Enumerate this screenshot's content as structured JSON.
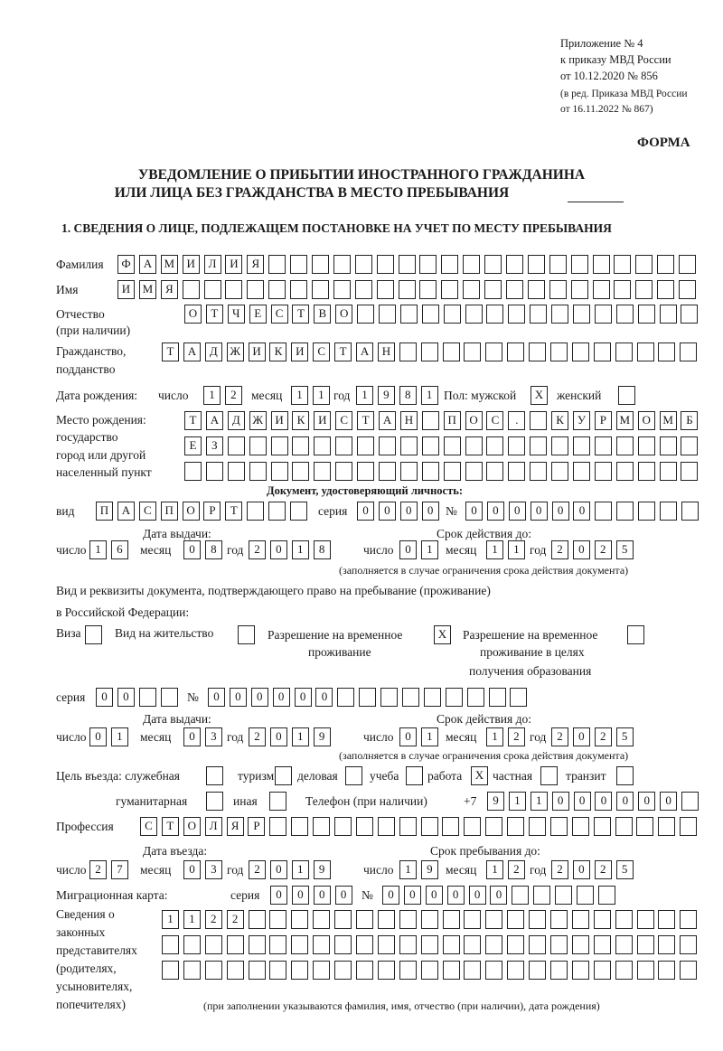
{
  "header": {
    "appendix": "Приложение № 4",
    "order": "к приказу МВД России",
    "order_date": "от 10.12.2020 № 856",
    "edition1": "(в ред. Приказа МВД России",
    "edition2": "от 16.11.2022 № 867)",
    "form": "ФОРМА",
    "title1": "УВЕДОМЛЕНИЕ О ПРИБЫТИИ ИНОСТРАННОГО ГРАЖДАНИНА",
    "title2": "ИЛИ ЛИЦА БЕЗ ГРАЖДАНСТВА В МЕСТО ПРЕБЫВАНИЯ",
    "section1": "1. СВЕДЕНИЯ О ЛИЦЕ, ПОДЛЕЖАЩЕМ ПОСТАНОВКЕ НА УЧЕТ ПО МЕСТУ ПРЕБЫВАНИЯ"
  },
  "person": {
    "surname_label": "Фамилия",
    "surname": [
      "Ф",
      "А",
      "М",
      "И",
      "Л",
      "И",
      "Я",
      "",
      "",
      "",
      "",
      "",
      "",
      "",
      "",
      "",
      "",
      "",
      "",
      "",
      "",
      "",
      "",
      "",
      "",
      "",
      ""
    ],
    "name_label": "Имя",
    "name": [
      "И",
      "М",
      "Я",
      "",
      "",
      "",
      "",
      "",
      "",
      "",
      "",
      "",
      "",
      "",
      "",
      "",
      "",
      "",
      "",
      "",
      "",
      "",
      "",
      "",
      "",
      "",
      ""
    ],
    "patronymic_label1": "Отчество",
    "patronymic_label2": "(при наличии)",
    "patronymic": [
      "О",
      "Т",
      "Ч",
      "Е",
      "С",
      "Т",
      "В",
      "О",
      "",
      "",
      "",
      "",
      "",
      "",
      "",
      "",
      "",
      "",
      "",
      "",
      "",
      "",
      "",
      ""
    ],
    "citizenship_label1": "Гражданство,",
    "citizenship_label2": "подданство",
    "citizenship": [
      "Т",
      "А",
      "Д",
      "Ж",
      "И",
      "К",
      "И",
      "С",
      "Т",
      "А",
      "Н",
      "",
      "",
      "",
      "",
      "",
      "",
      "",
      "",
      "",
      "",
      "",
      "",
      "",
      ""
    ],
    "birth_label": "Дата рождения:",
    "day_label": "число",
    "birth_day": [
      "1",
      "2"
    ],
    "month_label": "месяц",
    "birth_month": [
      "1",
      "1"
    ],
    "year_label": "год",
    "birth_year": [
      "1",
      "9",
      "8",
      "1"
    ],
    "sex_male_label": "Пол: мужской",
    "sex_male": [
      "X"
    ],
    "sex_female_label": "женский",
    "sex_female": [
      ""
    ],
    "birthplace_label1": "Место рождения:",
    "birthplace_label2": "государство",
    "birthplace_label3": "город или другой",
    "birthplace_label4": "населенный пункт",
    "birthplace_row1": [
      "Т",
      "А",
      "Д",
      "Ж",
      "И",
      "К",
      "И",
      "С",
      "Т",
      "А",
      "Н",
      "",
      "П",
      "О",
      "С",
      ".",
      "",
      "К",
      "У",
      "Р",
      "М",
      "О",
      "М",
      "Б"
    ],
    "birthplace_row2": [
      "Е",
      "З",
      "",
      "",
      "",
      "",
      "",
      "",
      "",
      "",
      "",
      "",
      "",
      "",
      "",
      "",
      "",
      "",
      "",
      "",
      "",
      "",
      "",
      ""
    ],
    "birthplace_row3": [
      "",
      "",
      "",
      "",
      "",
      "",
      "",
      "",
      "",
      "",
      "",
      "",
      "",
      "",
      "",
      "",
      "",
      "",
      "",
      "",
      "",
      "",
      "",
      ""
    ]
  },
  "id_document": {
    "heading": "Документ, удостоверяющий личность:",
    "type_label": "вид",
    "type": [
      "П",
      "А",
      "С",
      "П",
      "О",
      "Р",
      "Т",
      "",
      "",
      ""
    ],
    "series_label": "серия",
    "series": [
      "0",
      "0",
      "0",
      "0"
    ],
    "number_label": "№",
    "number": [
      "0",
      "0",
      "0",
      "0",
      "0",
      "0",
      "",
      "",
      "",
      "",
      ""
    ],
    "issue_label": "Дата выдачи:",
    "issue_day": [
      "1",
      "6"
    ],
    "issue_month": [
      "0",
      "8"
    ],
    "issue_year": [
      "2",
      "0",
      "1",
      "8"
    ],
    "valid_label": "Срок действия до:",
    "valid_day": [
      "0",
      "1"
    ],
    "valid_month": [
      "1",
      "1"
    ],
    "valid_year": [
      "2",
      "0",
      "2",
      "5"
    ],
    "note": "(заполняется в случае ограничения срока действия документа)"
  },
  "stay_document": {
    "heading1": "Вид и реквизиты документа, подтверждающего право на пребывание (проживание)",
    "heading2": "в Российской Федерации:",
    "visa_label": "Виза",
    "visa": [
      ""
    ],
    "residence_label": "Вид на жительство",
    "residence": [
      ""
    ],
    "temp_label1": "Разрешение на временное",
    "temp_label2": "проживание",
    "temp": [
      "X"
    ],
    "temp_edu_label1": "Разрешение на временное",
    "temp_edu_label2": "проживание в целях",
    "temp_edu_label3": "получения образования",
    "temp_edu": [
      ""
    ],
    "series_label": "серия",
    "series": [
      "0",
      "0",
      "",
      ""
    ],
    "number_label": "№",
    "number": [
      "0",
      "0",
      "0",
      "0",
      "0",
      "0",
      "",
      "",
      "",
      "",
      "",
      "",
      "",
      "",
      ""
    ],
    "issue_label": "Дата выдачи:",
    "issue_day": [
      "0",
      "1"
    ],
    "issue_month": [
      "0",
      "3"
    ],
    "issue_year": [
      "2",
      "0",
      "1",
      "9"
    ],
    "valid_label": "Срок действия до:",
    "valid_day": [
      "0",
      "1"
    ],
    "valid_month": [
      "1",
      "2"
    ],
    "valid_year": [
      "2",
      "0",
      "2",
      "5"
    ],
    "note": "(заполняется в случае ограничения срока действия документа)"
  },
  "purpose": {
    "label": "Цель въезда: служебная",
    "official": [
      ""
    ],
    "tourism_label": "туризм",
    "tourism": [
      ""
    ],
    "business_label": "деловая",
    "business": [
      ""
    ],
    "study_label": "учеба",
    "study": [
      ""
    ],
    "work_label": "работа",
    "work": [
      "X"
    ],
    "private_label": "частная",
    "private": [
      ""
    ],
    "transit_label": "транзит",
    "transit": [
      ""
    ],
    "humanitarian_label": "гуманитарная",
    "humanitarian": [
      ""
    ],
    "other_label": "иная",
    "other": [
      ""
    ],
    "phone_label": "Телефон (при наличии)",
    "phone_prefix": "+7",
    "phone": [
      "9",
      "1",
      "1",
      "0",
      "0",
      "0",
      "0",
      "0",
      "0",
      ""
    ]
  },
  "profession": {
    "label": "Профессия",
    "value": [
      "С",
      "Т",
      "О",
      "Л",
      "Я",
      "Р",
      "",
      "",
      "",
      "",
      "",
      "",
      "",
      "",
      "",
      "",
      "",
      "",
      "",
      "",
      "",
      "",
      "",
      "",
      "",
      ""
    ]
  },
  "entry": {
    "entry_label": "Дата въезда:",
    "entry_day": [
      "2",
      "7"
    ],
    "entry_month": [
      "0",
      "3"
    ],
    "entry_year": [
      "2",
      "0",
      "1",
      "9"
    ],
    "stay_label": "Срок пребывания до:",
    "stay_day": [
      "1",
      "9"
    ],
    "stay_month": [
      "1",
      "2"
    ],
    "stay_year": [
      "2",
      "0",
      "2",
      "5"
    ]
  },
  "migration_card": {
    "label": "Миграционная карта:",
    "series_label": "серия",
    "series": [
      "0",
      "0",
      "0",
      "0"
    ],
    "number_label": "№",
    "number": [
      "0",
      "0",
      "0",
      "0",
      "0",
      "0",
      "",
      "",
      "",
      "",
      ""
    ]
  },
  "representatives": {
    "label1": "Сведения о",
    "label2": "законных",
    "label3": "представителях",
    "label4": "(родителях,",
    "label5": "усыновителях,",
    "label6": "попечителях)",
    "row1": [
      "1",
      "1",
      "2",
      "2",
      "",
      "",
      "",
      "",
      "",
      "",
      "",
      "",
      "",
      "",
      "",
      "",
      "",
      "",
      "",
      "",
      "",
      "",
      "",
      "",
      ""
    ],
    "row2": [
      "",
      "",
      "",
      "",
      "",
      "",
      "",
      "",
      "",
      "",
      "",
      "",
      "",
      "",
      "",
      "",
      "",
      "",
      "",
      "",
      "",
      "",
      "",
      "",
      ""
    ],
    "row3": [
      "",
      "",
      "",
      "",
      "",
      "",
      "",
      "",
      "",
      "",
      "",
      "",
      "",
      "",
      "",
      "",
      "",
      "",
      "",
      "",
      "",
      "",
      "",
      "",
      ""
    ],
    "note": "(при заполнении указываются фамилия, имя, отчество (при наличии), дата рождения)"
  }
}
